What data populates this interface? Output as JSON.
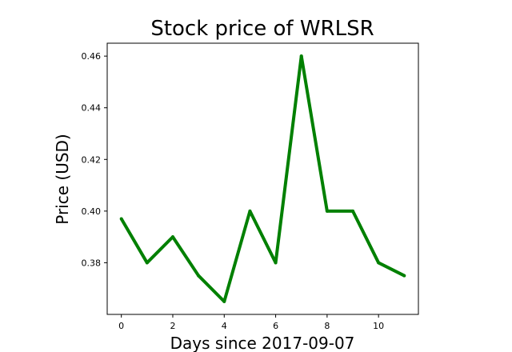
{
  "chart_data": {
    "type": "line",
    "title": "Stock price of WRLSR",
    "xlabel": "Days since 2017-09-07",
    "ylabel": "Price (USD)",
    "x": [
      0,
      1,
      2,
      3,
      4,
      5,
      6,
      7,
      8,
      9,
      10,
      11
    ],
    "series": [
      {
        "values": [
          0.397,
          0.38,
          0.39,
          0.375,
          0.365,
          0.4,
          0.38,
          0.46,
          0.4,
          0.4,
          0.38,
          0.375
        ]
      }
    ],
    "xlim": [
      -0.55,
      11.55
    ],
    "ylim": [
      0.36,
      0.465
    ],
    "xticks": [
      0,
      2,
      4,
      6,
      8,
      10
    ],
    "xtick_labels": [
      "0",
      "2",
      "4",
      "6",
      "8",
      "10"
    ],
    "yticks": [
      0.38,
      0.4,
      0.42,
      0.44,
      0.46
    ],
    "ytick_labels": [
      "0.38",
      "0.40",
      "0.42",
      "0.44",
      "0.46"
    ],
    "line_color": "#008000",
    "grid": false,
    "legend": "none"
  }
}
